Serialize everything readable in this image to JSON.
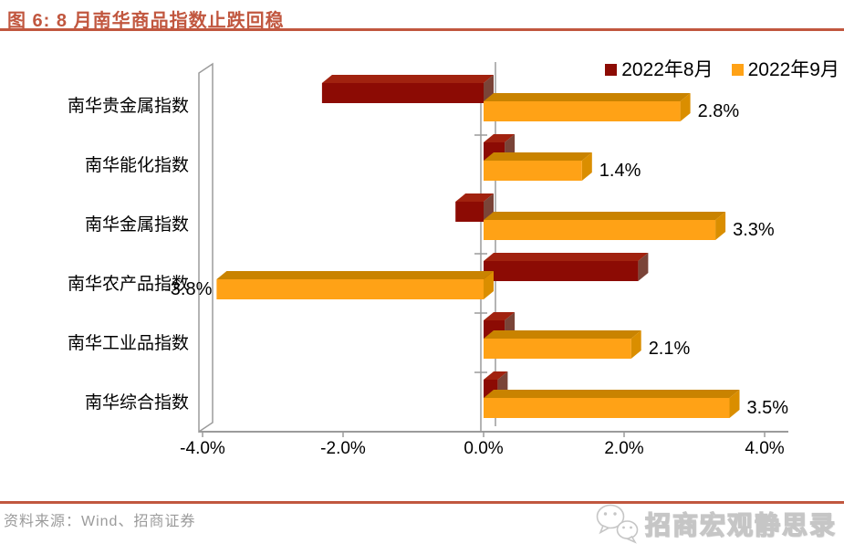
{
  "header": {
    "title": "图 6: 8 月南华商品指数止跌回稳"
  },
  "legend": [
    {
      "label": "2022年8月",
      "color": "#8C0B04"
    },
    {
      "label": "2022年9月",
      "color": "#FFA216"
    }
  ],
  "chart_data": {
    "type": "bar",
    "orientation": "horizontal",
    "style": "3d-clustered",
    "title": "图 6: 8 月南华商品指数止跌回稳",
    "categories": [
      "南华贵金属指数",
      "南华能化指数",
      "南华金属指数",
      "南华农产品指数",
      "南华工业品指数",
      "南华综合指数"
    ],
    "series": [
      {
        "name": "2022年8月",
        "colors": {
          "front": "#8C0B04",
          "top": "#A1220F",
          "side": "#7A4438"
        },
        "values": [
          -2.3,
          0.3,
          -0.4,
          2.2,
          0.3,
          0.2
        ],
        "data_labels": [
          "",
          "",
          "",
          "",
          "",
          ""
        ]
      },
      {
        "name": "2022年9月",
        "colors": {
          "front": "#FFA216",
          "top": "#C98300",
          "side": "#DA8E00"
        },
        "values": [
          2.8,
          1.4,
          3.3,
          -3.8,
          2.1,
          3.5
        ],
        "data_labels": [
          "2.8%",
          "1.4%",
          "3.3%",
          "-3.8%",
          "2.1%",
          "3.5%"
        ]
      }
    ],
    "x_axis": {
      "tick_labels": [
        "-4.0%",
        "-2.0%",
        "0.0%",
        "2.0%",
        "4.0%"
      ],
      "tick_values": [
        -4,
        -2,
        0,
        2,
        4
      ],
      "range": [
        -4,
        4
      ],
      "grid": false
    },
    "legend_position": "top-right"
  },
  "footer": {
    "source": "资料来源：Wind、招商证券",
    "brand": "招商宏观静思录"
  },
  "icons": {
    "brand": "wechat-icon"
  },
  "colors": {
    "accent": "#C1573F",
    "axis_gray": "#9B9B9B",
    "label_text": "#000000",
    "source_text": "#9B9B9B",
    "watermark_stroke": "#C6C6C6"
  }
}
